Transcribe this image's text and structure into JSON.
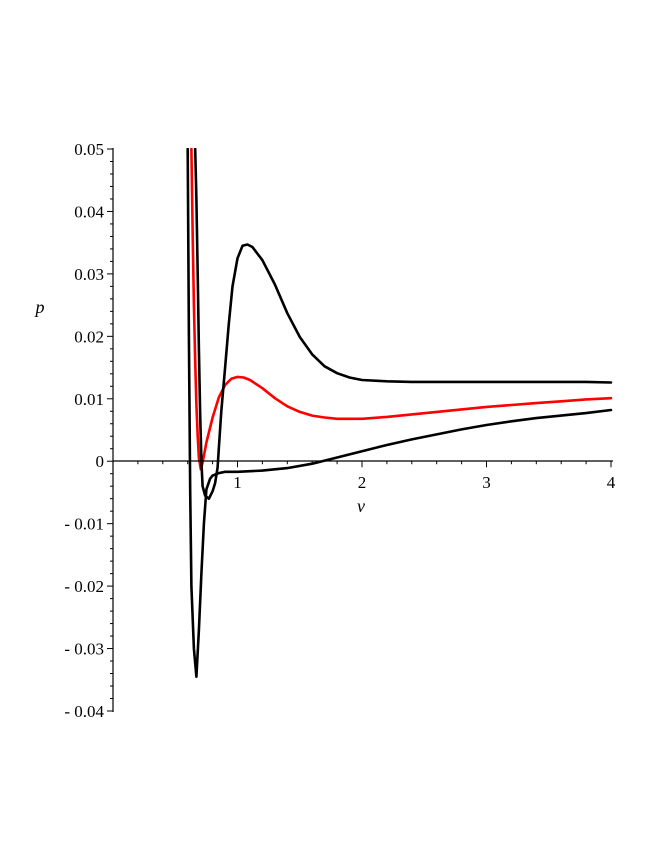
{
  "chart_data": {
    "type": "line",
    "title": "",
    "xlabel": "v",
    "ylabel": "p",
    "xlim": [
      0,
      4
    ],
    "ylim": [
      -0.04,
      0.05
    ],
    "grid": false,
    "legend": "none",
    "x_ticks": [
      {
        "value": 1,
        "label": "1"
      },
      {
        "value": 2,
        "label": "2"
      },
      {
        "value": 3,
        "label": "3"
      },
      {
        "value": 4,
        "label": "4"
      }
    ],
    "y_ticks": [
      {
        "value": 0.05,
        "label": "0.05"
      },
      {
        "value": 0.04,
        "label": "0.04"
      },
      {
        "value": 0.03,
        "label": "0.03"
      },
      {
        "value": 0.02,
        "label": "0.02"
      },
      {
        "value": 0.01,
        "label": "0.01"
      },
      {
        "value": 0,
        "label": "0"
      },
      {
        "value": -0.01,
        "label": "- 0.01"
      },
      {
        "value": -0.02,
        "label": "- 0.02"
      },
      {
        "value": -0.03,
        "label": "- 0.03"
      },
      {
        "value": -0.04,
        "label": "- 0.04"
      }
    ],
    "series": [
      {
        "color": "#000000",
        "points": [
          [
            0.6,
            0.05
          ],
          [
            0.61,
            0.02
          ],
          [
            0.62,
            -0.005
          ],
          [
            0.63,
            -0.02
          ],
          [
            0.65,
            -0.03
          ],
          [
            0.67,
            -0.0345
          ],
          [
            0.69,
            -0.027
          ],
          [
            0.71,
            -0.018
          ],
          [
            0.73,
            -0.01
          ],
          [
            0.75,
            -0.0045
          ],
          [
            0.78,
            -0.0028
          ],
          [
            0.8,
            -0.0023
          ],
          [
            0.85,
            -0.0019
          ],
          [
            0.9,
            -0.0017
          ],
          [
            1.0,
            -0.0017
          ],
          [
            1.1,
            -0.0016
          ],
          [
            1.2,
            -0.0015
          ],
          [
            1.4,
            -0.0011
          ],
          [
            1.6,
            -0.0004
          ],
          [
            1.8,
            0.0006
          ],
          [
            2.0,
            0.0016
          ],
          [
            2.2,
            0.0026
          ],
          [
            2.4,
            0.0035
          ],
          [
            2.6,
            0.0043
          ],
          [
            2.8,
            0.0051
          ],
          [
            3.0,
            0.0058
          ],
          [
            3.2,
            0.0064
          ],
          [
            3.4,
            0.0069
          ],
          [
            3.6,
            0.0073
          ],
          [
            3.8,
            0.0077
          ],
          [
            4.0,
            0.0082
          ]
        ]
      },
      {
        "color": "#ff0000",
        "points": [
          [
            0.63,
            0.05
          ],
          [
            0.64,
            0.036
          ],
          [
            0.65,
            0.025
          ],
          [
            0.66,
            0.016
          ],
          [
            0.67,
            0.009
          ],
          [
            0.68,
            0.004
          ],
          [
            0.69,
            0.0005
          ],
          [
            0.705,
            -0.0013
          ],
          [
            0.72,
            -0.0002
          ],
          [
            0.75,
            0.003
          ],
          [
            0.8,
            0.007
          ],
          [
            0.85,
            0.0102
          ],
          [
            0.9,
            0.0122
          ],
          [
            0.95,
            0.0132
          ],
          [
            1.0,
            0.0135
          ],
          [
            1.05,
            0.0134
          ],
          [
            1.1,
            0.013
          ],
          [
            1.2,
            0.0117
          ],
          [
            1.3,
            0.0101
          ],
          [
            1.4,
            0.0088
          ],
          [
            1.5,
            0.0079
          ],
          [
            1.6,
            0.0073
          ],
          [
            1.7,
            0.007
          ],
          [
            1.8,
            0.0068
          ],
          [
            1.9,
            0.0068
          ],
          [
            2.0,
            0.0068
          ],
          [
            2.2,
            0.0071
          ],
          [
            2.4,
            0.0075
          ],
          [
            2.6,
            0.0079
          ],
          [
            2.8,
            0.0083
          ],
          [
            3.0,
            0.0087
          ],
          [
            3.2,
            0.009
          ],
          [
            3.4,
            0.0093
          ],
          [
            3.6,
            0.0096
          ],
          [
            3.8,
            0.0099
          ],
          [
            4.0,
            0.0101
          ]
        ]
      },
      {
        "color": "#000000",
        "points": [
          [
            0.66,
            0.05
          ],
          [
            0.67,
            0.042
          ],
          [
            0.68,
            0.03
          ],
          [
            0.69,
            0.018
          ],
          [
            0.7,
            0.008
          ],
          [
            0.71,
            0.0
          ],
          [
            0.72,
            -0.004
          ],
          [
            0.74,
            -0.0055
          ],
          [
            0.77,
            -0.006
          ],
          [
            0.8,
            -0.0048
          ],
          [
            0.82,
            -0.0035
          ],
          [
            0.84,
            -0.001
          ],
          [
            0.85,
            0.002
          ],
          [
            0.87,
            0.008
          ],
          [
            0.9,
            0.015
          ],
          [
            0.93,
            0.022
          ],
          [
            0.96,
            0.028
          ],
          [
            1.0,
            0.0325
          ],
          [
            1.04,
            0.0345
          ],
          [
            1.08,
            0.0347
          ],
          [
            1.12,
            0.0343
          ],
          [
            1.2,
            0.0322
          ],
          [
            1.3,
            0.0283
          ],
          [
            1.4,
            0.0237
          ],
          [
            1.5,
            0.0199
          ],
          [
            1.6,
            0.0171
          ],
          [
            1.7,
            0.0152
          ],
          [
            1.8,
            0.0141
          ],
          [
            1.9,
            0.0134
          ],
          [
            2.0,
            0.013
          ],
          [
            2.2,
            0.0128
          ],
          [
            2.4,
            0.0127
          ],
          [
            2.6,
            0.0127
          ],
          [
            2.8,
            0.0127
          ],
          [
            3.0,
            0.0127
          ],
          [
            3.2,
            0.0127
          ],
          [
            3.4,
            0.0127
          ],
          [
            3.6,
            0.0127
          ],
          [
            3.8,
            0.0127
          ],
          [
            4.0,
            0.0126
          ]
        ]
      }
    ]
  }
}
